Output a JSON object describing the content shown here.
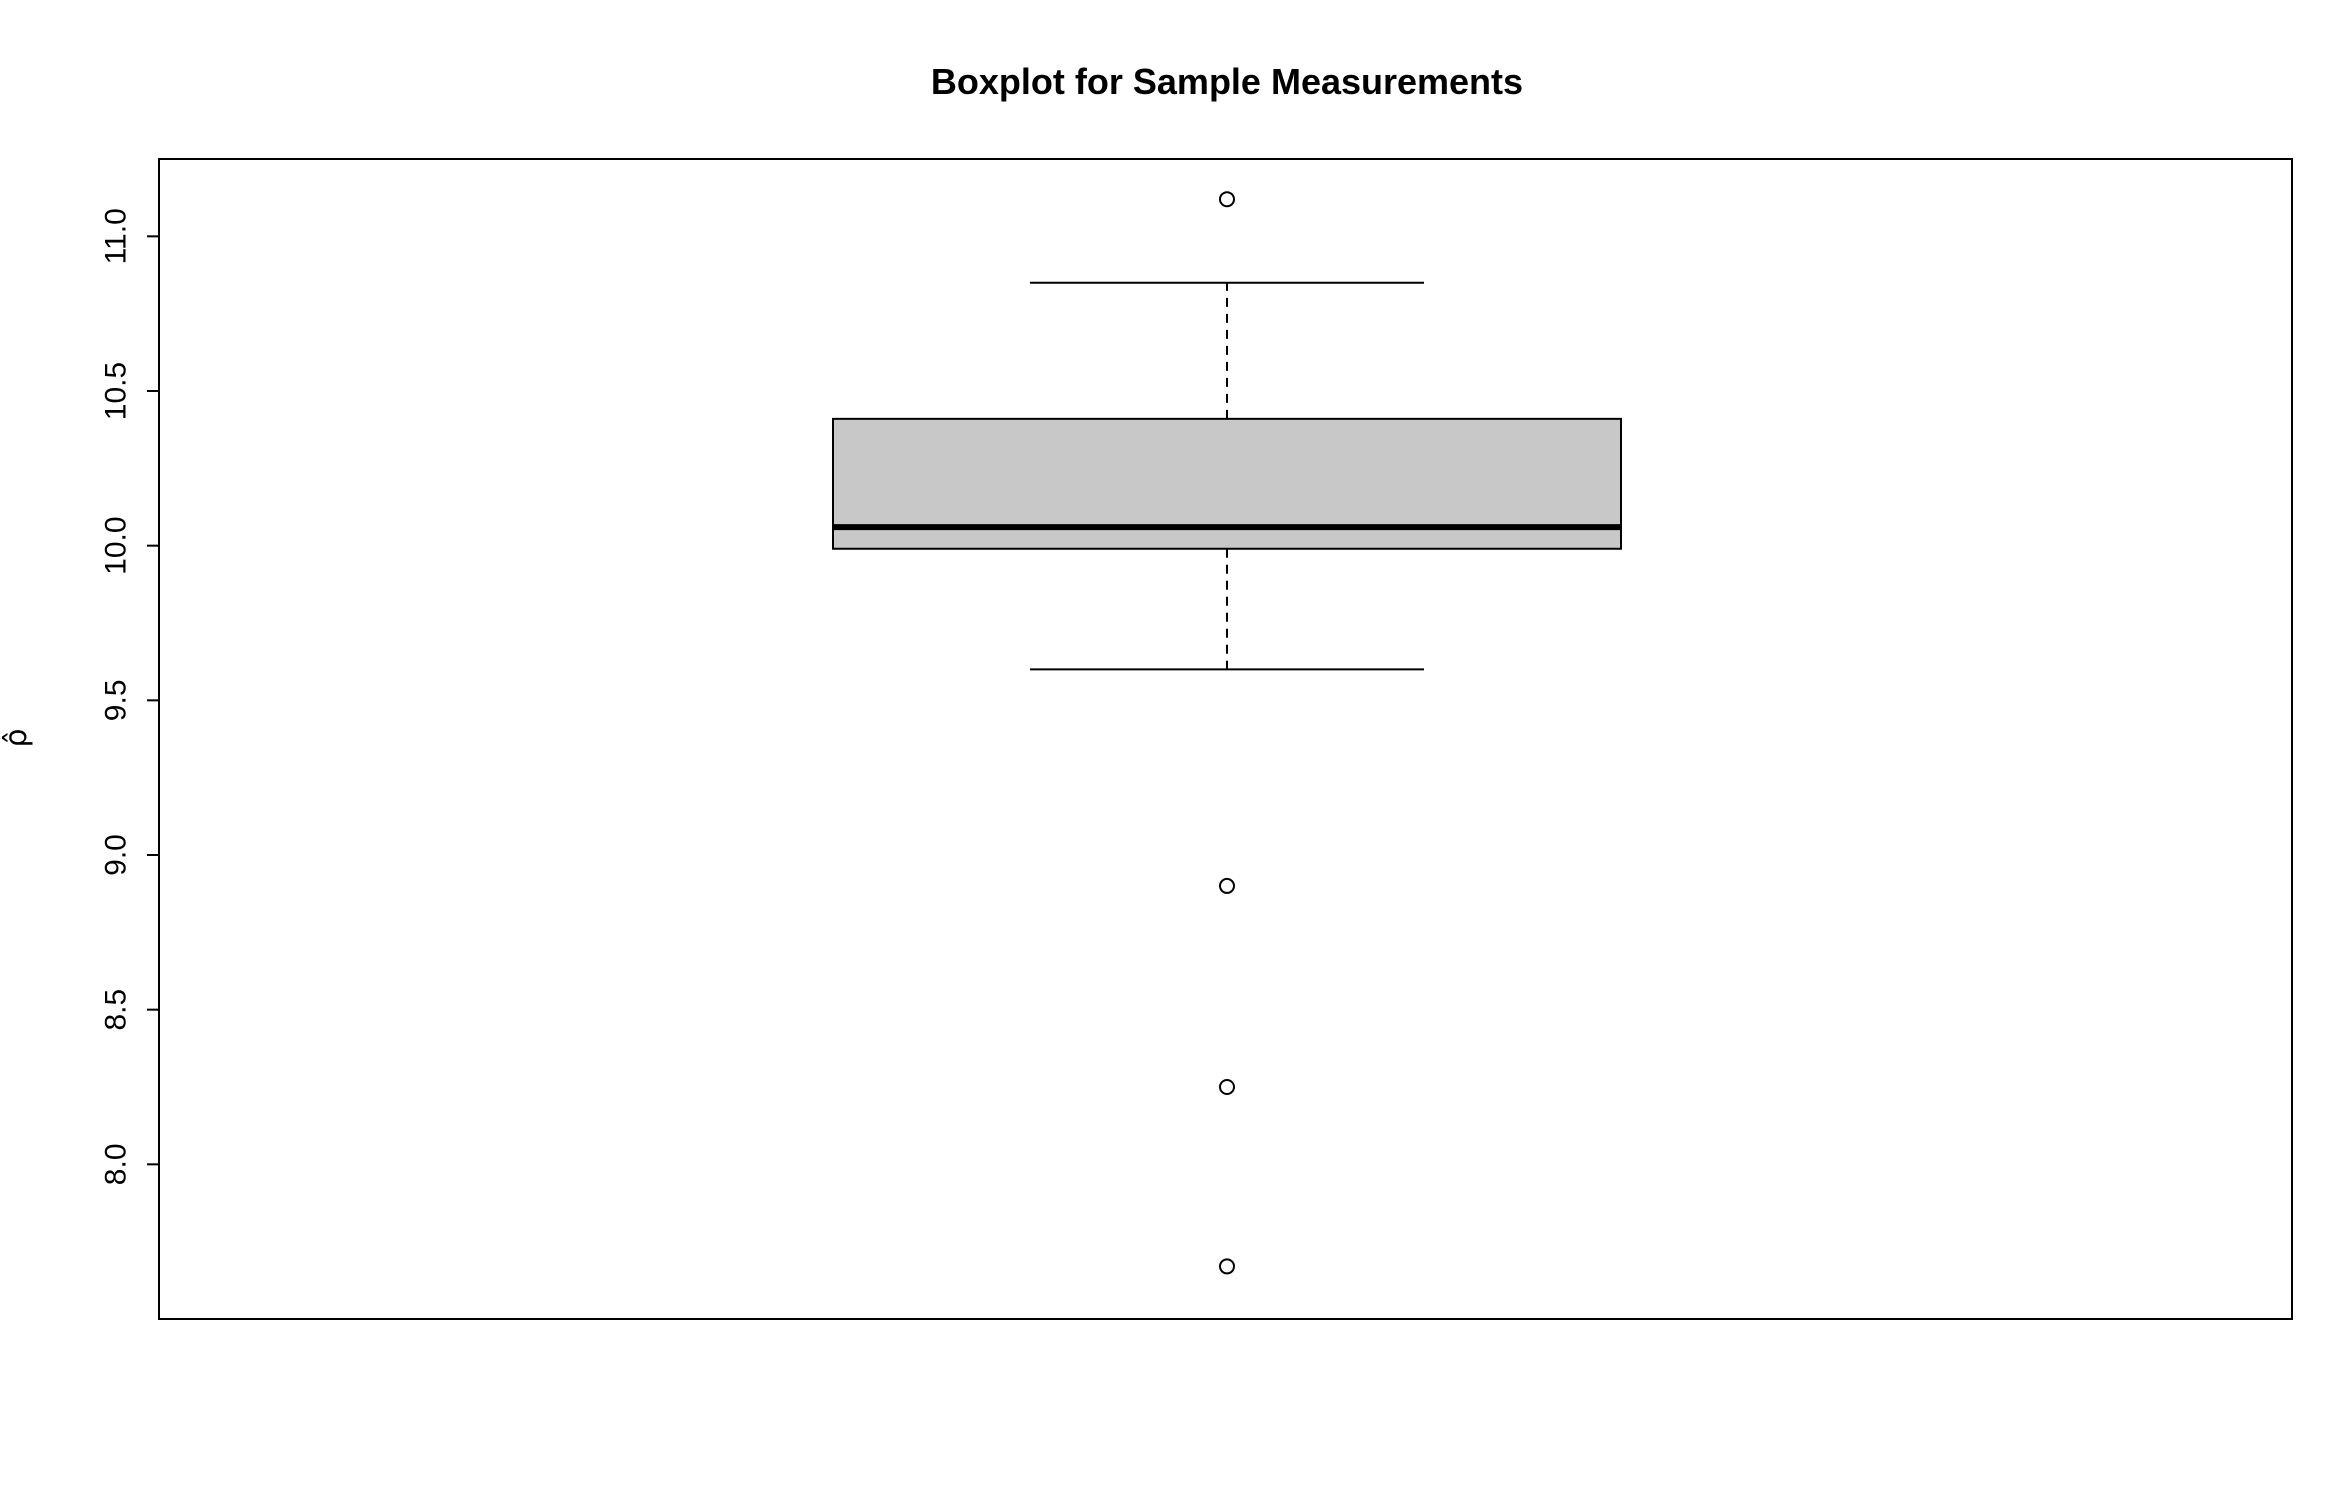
{
  "chart_data": {
    "type": "boxplot",
    "title": "Boxplot for Sample Measurements",
    "ylabel": "ρ̂",
    "xlabel": "",
    "ylim": [
      7.5,
      11.25
    ],
    "yticks": [
      8.0,
      8.5,
      9.0,
      9.5,
      10.0,
      10.5,
      11.0
    ],
    "ytick_labels": [
      "8.0",
      "8.5",
      "9.0",
      "9.5",
      "10.0",
      "10.5",
      "11.0"
    ],
    "box": {
      "whisker_low": 9.6,
      "q1": 9.99,
      "median": 10.06,
      "q3": 10.41,
      "whisker_high": 10.85,
      "fill": "#c8c8c8"
    },
    "outliers": [
      11.12,
      8.9,
      8.25,
      7.67
    ],
    "grid": false
  }
}
